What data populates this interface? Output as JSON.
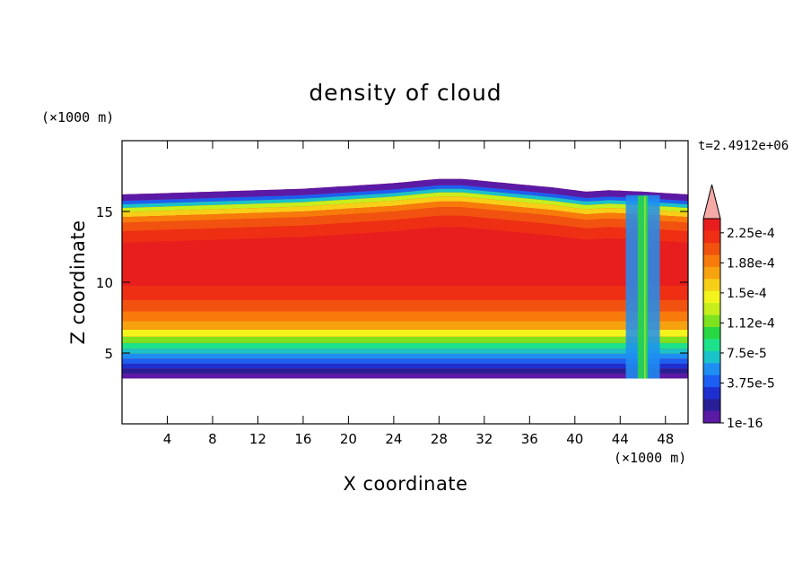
{
  "chart_data": {
    "type": "heatmap",
    "title": "density of cloud",
    "xlabel": "X coordinate",
    "ylabel": "Z coordinate",
    "x_unit": "(×1000 m)",
    "y_unit": "(×1000 m)",
    "time_label": "t=2.4912e+06",
    "xlim": [
      0,
      50
    ],
    "ylim": [
      0,
      20
    ],
    "x_ticks": [
      4,
      8,
      12,
      16,
      20,
      24,
      28,
      32,
      36,
      40,
      44,
      48
    ],
    "y_ticks": [
      5,
      10,
      15
    ],
    "colorbar": {
      "labels": [
        "1e-16",
        "3.75e-5",
        "7.5e-5",
        "1.12e-4",
        "1.5e-4",
        "1.88e-4",
        "2.25e-4"
      ],
      "colors": [
        "#5a1aa6",
        "#2a1e96",
        "#1f2fcf",
        "#1c5ff2",
        "#1e8ff2",
        "#19c3c9",
        "#1ce28c",
        "#28d842",
        "#7ee21f",
        "#c7ee1d",
        "#f4f41d",
        "#f7cf18",
        "#f7a20f",
        "#f77a0b",
        "#f2520f",
        "#ee2f14",
        "#e81e1e"
      ],
      "overflow_color": "#f5aaa8"
    },
    "field_profile": {
      "base_z": 3.2,
      "surface_top_z": [
        [
          0,
          16.2
        ],
        [
          4,
          16.3
        ],
        [
          8,
          16.4
        ],
        [
          12,
          16.5
        ],
        [
          16,
          16.6
        ],
        [
          20,
          16.8
        ],
        [
          24,
          17.0
        ],
        [
          28,
          17.3
        ],
        [
          30,
          17.3
        ],
        [
          34,
          17.0
        ],
        [
          38,
          16.7
        ],
        [
          41,
          16.4
        ],
        [
          43,
          16.5
        ],
        [
          46,
          16.4
        ],
        [
          50,
          16.2
        ]
      ],
      "bands_from_base": [
        {
          "thickness": 0.35,
          "level": 0
        },
        {
          "thickness": 0.35,
          "level": 1
        },
        {
          "thickness": 0.35,
          "level": 2
        },
        {
          "thickness": 0.35,
          "level": 3
        },
        {
          "thickness": 0.35,
          "level": 4
        },
        {
          "thickness": 0.35,
          "level": 5
        },
        {
          "thickness": 0.4,
          "level": 6
        },
        {
          "thickness": 0.45,
          "level": 8
        },
        {
          "thickness": 0.5,
          "level": 10
        },
        {
          "thickness": 0.6,
          "level": 12
        },
        {
          "thickness": 0.7,
          "level": 13
        },
        {
          "thickness": 0.8,
          "level": 14
        },
        {
          "thickness": 1.0,
          "level": 15
        }
      ],
      "bands_from_top": [
        {
          "thickness": 0.45,
          "level": 0
        },
        {
          "thickness": 0.25,
          "level": 3
        },
        {
          "thickness": 0.25,
          "level": 5
        },
        {
          "thickness": 0.3,
          "level": 9
        },
        {
          "thickness": 0.35,
          "level": 11
        },
        {
          "thickness": 0.4,
          "level": 13
        },
        {
          "thickness": 0.6,
          "level": 14
        },
        {
          "thickness": 0.8,
          "level": 15
        }
      ],
      "core_level": 16,
      "plume_x": [
        44.5,
        47.5
      ]
    }
  }
}
